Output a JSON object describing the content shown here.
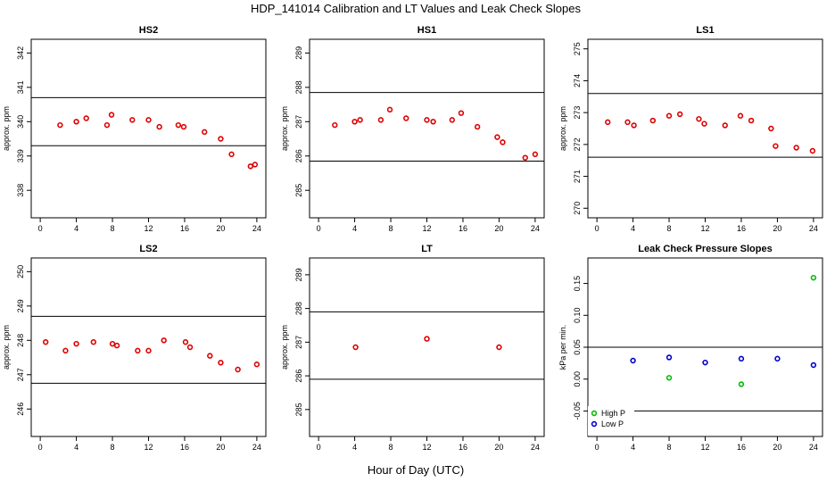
{
  "figure": {
    "title": "HDP_141014  Calibration and LT Values and Leak Check Slopes",
    "xlabel": "Hour of Day (UTC)"
  },
  "chart_data": [
    {
      "type": "scatter",
      "title": "HS2",
      "ylabel": "approx. ppm",
      "xlim": [
        -1,
        25
      ],
      "ylim": [
        337.2,
        342.4
      ],
      "xticks": [
        0,
        4,
        8,
        12,
        16,
        20,
        24
      ],
      "yticks": [
        338,
        339,
        340,
        341,
        342
      ],
      "hlines": [
        340.7,
        339.3
      ],
      "series": [
        {
          "color": "#dd0000",
          "marker": "circle",
          "x": [
            2.2,
            4.0,
            5.1,
            7.4,
            7.9,
            10.2,
            12.0,
            13.2,
            15.3,
            15.9,
            18.2,
            20.0,
            21.2,
            23.3,
            23.8
          ],
          "y": [
            339.9,
            340.0,
            340.1,
            339.9,
            340.2,
            340.05,
            340.05,
            339.85,
            339.9,
            339.85,
            339.7,
            339.5,
            339.05,
            338.7,
            338.75
          ]
        }
      ]
    },
    {
      "type": "scatter",
      "title": "HS1",
      "ylabel": "approx. ppm",
      "xlim": [
        -1,
        25
      ],
      "ylim": [
        284.2,
        289.4
      ],
      "xticks": [
        0,
        4,
        8,
        12,
        16,
        20,
        24
      ],
      "yticks": [
        285,
        286,
        287,
        288,
        289
      ],
      "hlines": [
        287.85,
        285.85
      ],
      "series": [
        {
          "color": "#dd0000",
          "marker": "circle",
          "x": [
            1.8,
            4.0,
            4.6,
            6.9,
            7.9,
            9.7,
            12.0,
            12.7,
            14.8,
            15.8,
            17.6,
            19.8,
            20.4,
            22.9,
            24.0
          ],
          "y": [
            286.9,
            287.0,
            287.05,
            287.05,
            287.35,
            287.1,
            287.05,
            287.0,
            287.05,
            287.25,
            286.85,
            286.55,
            286.4,
            285.95,
            286.05
          ]
        }
      ]
    },
    {
      "type": "scatter",
      "title": "LS1",
      "ylabel": "approx. ppm",
      "xlim": [
        -1,
        25
      ],
      "ylim": [
        269.7,
        275.3
      ],
      "xticks": [
        0,
        4,
        8,
        12,
        16,
        20,
        24
      ],
      "yticks": [
        270,
        271,
        272,
        273,
        274,
        275
      ],
      "hlines": [
        273.6,
        271.6
      ],
      "series": [
        {
          "color": "#dd0000",
          "marker": "circle",
          "x": [
            1.2,
            3.4,
            4.1,
            6.2,
            8.0,
            9.2,
            11.3,
            11.9,
            14.2,
            15.9,
            17.1,
            19.3,
            19.8,
            22.1,
            23.9
          ],
          "y": [
            272.7,
            272.7,
            272.6,
            272.75,
            272.9,
            272.95,
            272.8,
            272.65,
            272.6,
            272.9,
            272.75,
            272.5,
            271.95,
            271.9,
            271.8
          ]
        }
      ]
    },
    {
      "type": "scatter",
      "title": "LS2",
      "ylabel": "approx. ppm",
      "xlim": [
        -1,
        25
      ],
      "ylim": [
        245.2,
        250.4
      ],
      "xticks": [
        0,
        4,
        8,
        12,
        16,
        20,
        24
      ],
      "yticks": [
        246,
        247,
        248,
        249,
        250
      ],
      "hlines": [
        248.7,
        246.75
      ],
      "series": [
        {
          "color": "#dd0000",
          "marker": "circle",
          "x": [
            0.6,
            2.8,
            4.0,
            5.9,
            8.0,
            8.5,
            10.8,
            12.0,
            13.7,
            16.1,
            16.6,
            18.8,
            20.0,
            21.9,
            24.0
          ],
          "y": [
            247.95,
            247.7,
            247.9,
            247.95,
            247.9,
            247.85,
            247.7,
            247.7,
            248.0,
            247.95,
            247.8,
            247.55,
            247.35,
            247.15,
            247.3
          ]
        }
      ]
    },
    {
      "type": "scatter",
      "title": "LT",
      "ylabel": "approx. ppm",
      "xlim": [
        -1,
        25
      ],
      "ylim": [
        284.2,
        289.5
      ],
      "xticks": [
        0,
        4,
        8,
        12,
        16,
        20,
        24
      ],
      "yticks": [
        285,
        286,
        287,
        288,
        289
      ],
      "hlines": [
        287.9,
        285.9
      ],
      "series": [
        {
          "color": "#dd0000",
          "marker": "circle",
          "x": [
            4.1,
            12.0,
            20.0
          ],
          "y": [
            286.85,
            287.1,
            286.85
          ]
        }
      ]
    },
    {
      "type": "scatter",
      "title": "Leak Check Pressure Slopes",
      "ylabel": "kPa per min.",
      "xlim": [
        -1,
        25
      ],
      "ylim": [
        -0.09,
        0.19
      ],
      "xticks": [
        0,
        4,
        8,
        12,
        16,
        20,
        24
      ],
      "yticks": [
        -0.05,
        0.0,
        0.05,
        0.1,
        0.15
      ],
      "ytick_labels": [
        "-0.05",
        "0.00",
        "0.05",
        "0.10",
        "0.15"
      ],
      "hlines": [
        0.05,
        -0.05
      ],
      "legend": {
        "position": "bottom-left",
        "entries": [
          "High P",
          "Low P"
        ]
      },
      "series": [
        {
          "name": "High P",
          "color": "#00bb00",
          "marker": "circle",
          "x": [
            8.0,
            16.0,
            24.0
          ],
          "y": [
            0.002,
            -0.008,
            0.159
          ]
        },
        {
          "name": "Low P",
          "color": "#0000cc",
          "marker": "circle",
          "x": [
            4.0,
            8.0,
            12.0,
            16.0,
            20.0,
            24.0
          ],
          "y": [
            0.029,
            0.034,
            0.026,
            0.032,
            0.032,
            0.022
          ]
        }
      ]
    }
  ]
}
